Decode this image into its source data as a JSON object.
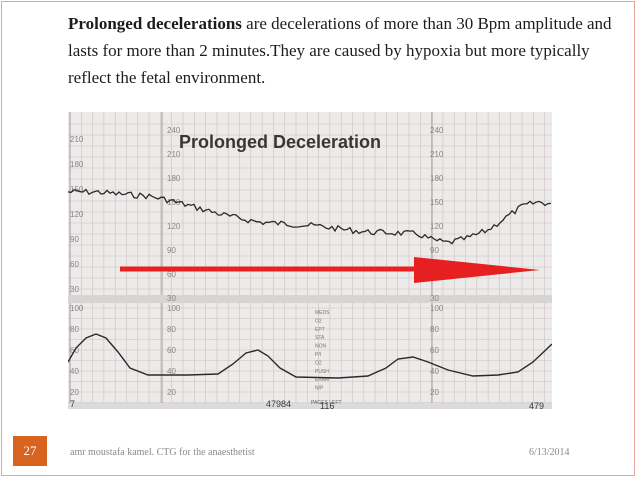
{
  "slide": {
    "title_term": "Prolonged decelerations",
    "title_rest": " are decelerations of more than 30 Bpm amplitude  and lasts for more than 2 minutes.They are caused by hypoxia but more typically reflect the fetal environment."
  },
  "ctg_image": {
    "caption": "Prolonged Deceleration",
    "fhr_ticks_left": [
      "210",
      "180",
      "150",
      "120",
      "90",
      "60",
      "30"
    ],
    "fhr_ticks_mid": [
      "240",
      "210",
      "180",
      "150",
      "120",
      "90",
      "60",
      "30"
    ],
    "fhr_ticks_right": [
      "240",
      "210",
      "180",
      "150",
      "120",
      "90",
      "60",
      "30"
    ],
    "uc_ticks_left": [
      "100",
      "80",
      "60",
      "40",
      "20"
    ],
    "uc_ticks_mid": [
      "100",
      "80",
      "60",
      "40",
      "20"
    ],
    "uc_ticks_right": [
      "100",
      "80",
      "60",
      "40",
      "20"
    ],
    "legend_rows": [
      "MEDS",
      "O2",
      "EPT",
      "STA",
      "NON",
      "P/I",
      "O2",
      "PUSH",
      "EXAM",
      "N/P"
    ],
    "bottom_left": "7",
    "counter_1": "47984",
    "pages_left": "PAGES LEFT",
    "pages_value": "116",
    "counter_2": "479",
    "colors": {
      "arrow": "#e62020",
      "grid": "#c9c1c1",
      "paper": "#ecebea",
      "trace": "#2a2a2a"
    }
  },
  "footer": {
    "author": "amr moustafa kamel. CTG for the anaesthetist",
    "date": "6/13/2014",
    "page_number": "27"
  }
}
